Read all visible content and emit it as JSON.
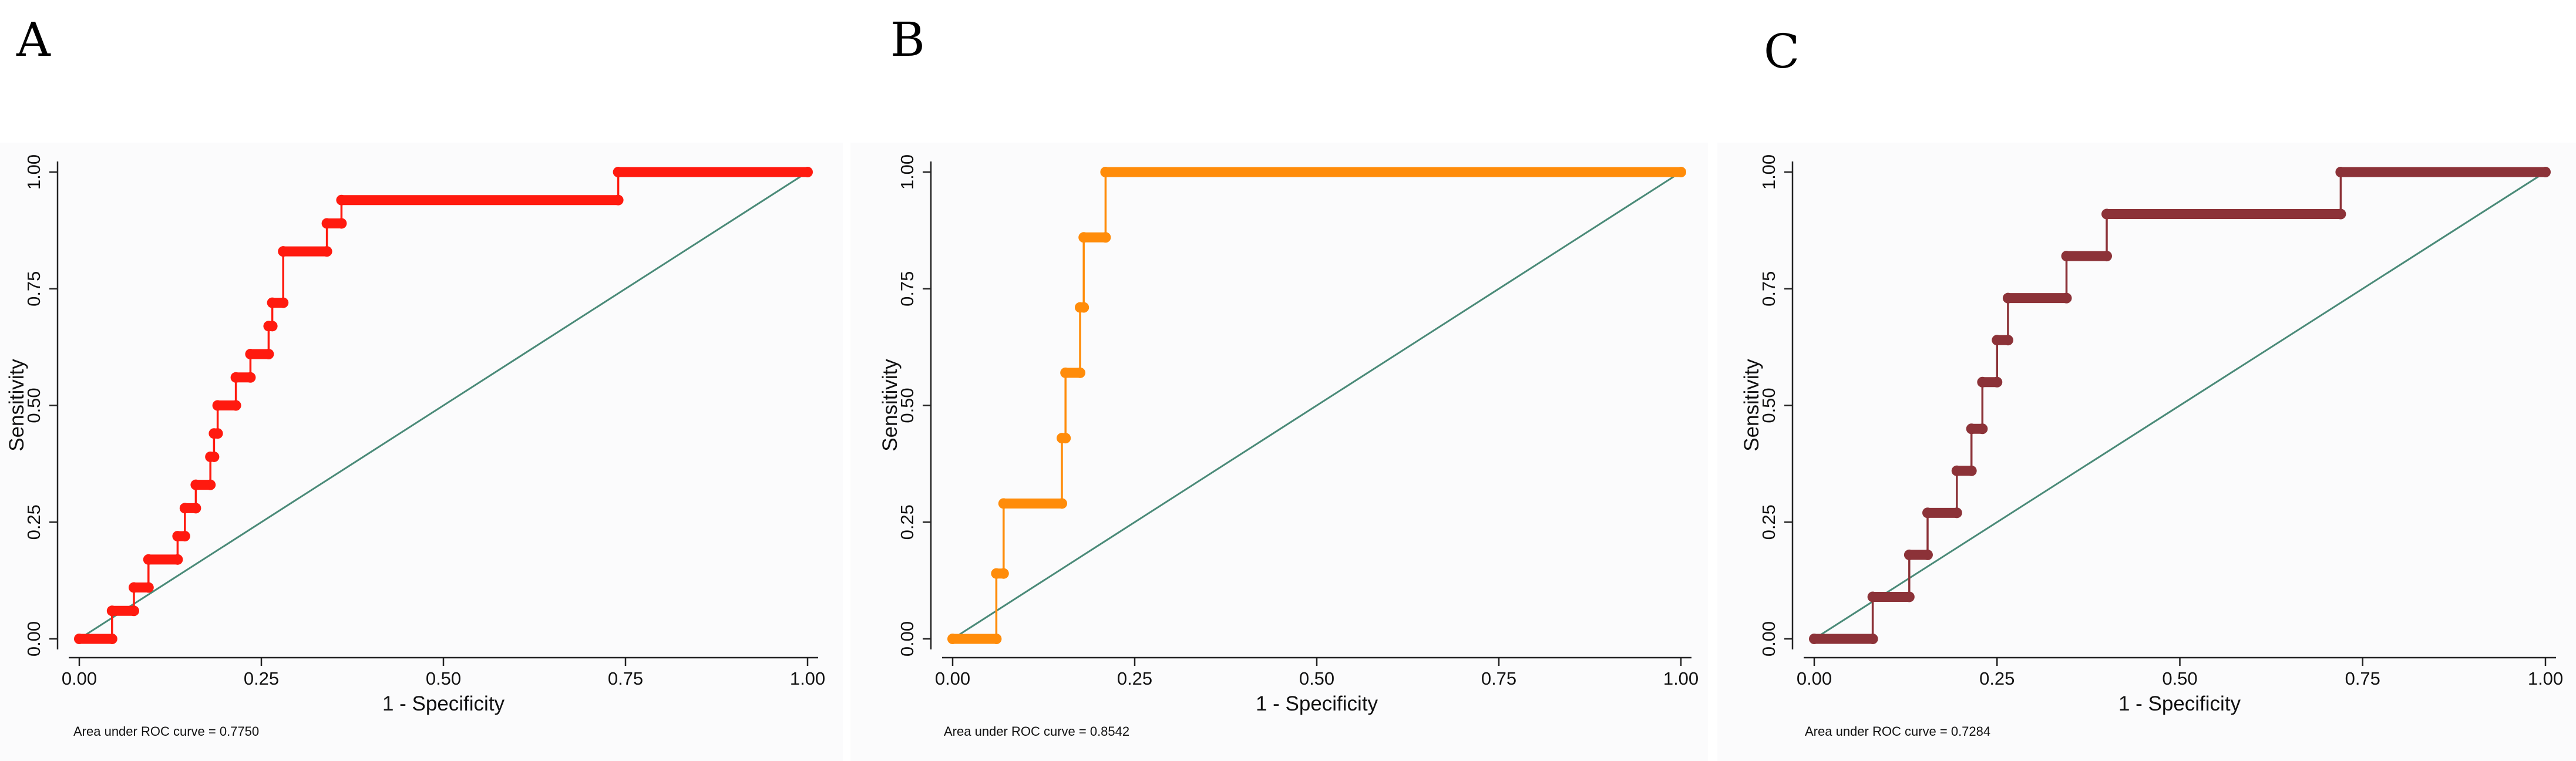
{
  "panels": [
    {
      "letter": "A",
      "color": "#ff1a0f",
      "auc_text": "Area under ROC curve = 0.7750"
    },
    {
      "letter": "B",
      "color": "#ff8c0a",
      "auc_text": "Area under ROC curve = 0.8542"
    },
    {
      "letter": "C",
      "color": "#8c3238",
      "auc_text": "Area under ROC curve = 0.7284"
    }
  ],
  "diagonal_color": "#4a8a78",
  "chart_data": [
    {
      "type": "line",
      "title": "",
      "xlabel": "1 - Specificity",
      "ylabel": "Sensitivity",
      "xlim": [
        0,
        1
      ],
      "ylim": [
        0,
        1
      ],
      "xticks": [
        "0.00",
        "0.25",
        "0.50",
        "0.75",
        "1.00"
      ],
      "yticks": [
        "0.00",
        "0.25",
        "0.50",
        "0.75",
        "1.00"
      ],
      "grid": false,
      "auc": 0.775,
      "annotation": "Area under ROC curve = 0.7750",
      "series": [
        {
          "x": [
            0,
            0.045,
            0.045,
            0.075,
            0.075,
            0.095,
            0.095,
            0.135,
            0.135,
            0.145,
            0.145,
            0.16,
            0.16,
            0.18,
            0.18,
            0.185,
            0.185,
            0.19,
            0.19,
            0.215,
            0.215,
            0.235,
            0.235,
            0.26,
            0.26,
            0.265,
            0.265,
            0.28,
            0.28,
            0.34,
            0.34,
            0.36,
            0.36,
            0.74,
            0.74,
            1
          ],
          "y": [
            0,
            0,
            0.06,
            0.06,
            0.11,
            0.11,
            0.17,
            0.17,
            0.22,
            0.22,
            0.28,
            0.28,
            0.33,
            0.33,
            0.39,
            0.39,
            0.44,
            0.44,
            0.5,
            0.5,
            0.56,
            0.56,
            0.61,
            0.61,
            0.67,
            0.67,
            0.72,
            0.72,
            0.83,
            0.83,
            0.89,
            0.89,
            0.94,
            0.94,
            1,
            1
          ]
        }
      ]
    },
    {
      "type": "line",
      "title": "",
      "xlabel": "1 - Specificity",
      "ylabel": "Sensitivity",
      "xlim": [
        0,
        1
      ],
      "ylim": [
        0,
        1
      ],
      "xticks": [
        "0.00",
        "0.25",
        "0.50",
        "0.75",
        "1.00"
      ],
      "yticks": [
        "0.00",
        "0.25",
        "0.50",
        "0.75",
        "1.00"
      ],
      "grid": false,
      "auc": 0.8542,
      "annotation": "Area under ROC curve = 0.8542",
      "series": [
        {
          "x": [
            0,
            0.06,
            0.06,
            0.07,
            0.07,
            0.15,
            0.15,
            0.155,
            0.155,
            0.175,
            0.175,
            0.18,
            0.18,
            0.21,
            0.21,
            1
          ],
          "y": [
            0,
            0,
            0.14,
            0.14,
            0.29,
            0.29,
            0.43,
            0.43,
            0.57,
            0.57,
            0.71,
            0.71,
            0.86,
            0.86,
            1,
            1
          ]
        }
      ]
    },
    {
      "type": "line",
      "title": "",
      "xlabel": "1 - Specificity",
      "ylabel": "Sensitivity",
      "xlim": [
        0,
        1
      ],
      "ylim": [
        0,
        1
      ],
      "xticks": [
        "0.00",
        "0.25",
        "0.50",
        "0.75",
        "1.00"
      ],
      "yticks": [
        "0.00",
        "0.25",
        "0.50",
        "0.75",
        "1.00"
      ],
      "grid": false,
      "auc": 0.7284,
      "annotation": "Area under ROC curve = 0.7284",
      "series": [
        {
          "x": [
            0,
            0.08,
            0.08,
            0.13,
            0.13,
            0.155,
            0.155,
            0.195,
            0.195,
            0.215,
            0.215,
            0.23,
            0.23,
            0.25,
            0.25,
            0.265,
            0.265,
            0.345,
            0.345,
            0.4,
            0.4,
            0.72,
            0.72,
            1
          ],
          "y": [
            0,
            0,
            0.09,
            0.09,
            0.18,
            0.18,
            0.27,
            0.27,
            0.36,
            0.36,
            0.45,
            0.45,
            0.55,
            0.55,
            0.64,
            0.64,
            0.73,
            0.73,
            0.82,
            0.82,
            0.91,
            0.91,
            1,
            1
          ]
        }
      ]
    }
  ]
}
